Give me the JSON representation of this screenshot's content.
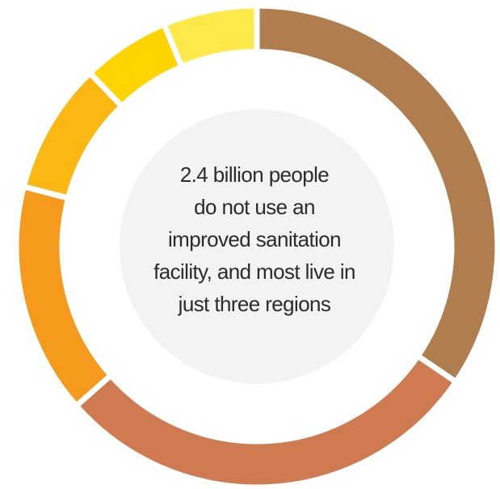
{
  "chart_data": {
    "type": "pie",
    "variant": "donut",
    "start_angle_deg": 0,
    "direction": "clockwise",
    "segments": [
      {
        "value": 34.5,
        "color": "#b07d4e"
      },
      {
        "value": 29.0,
        "color": "#d07a52"
      },
      {
        "value": 15.5,
        "color": "#f59a1c"
      },
      {
        "value": 8.8,
        "color": "#fbb813"
      },
      {
        "value": 5.9,
        "color": "#ffd400"
      },
      {
        "value": 6.3,
        "color": "#ffe94a"
      }
    ],
    "center_fill": "#f3f3f3",
    "separator_color": "#ffffff",
    "center_text": [
      "2.4 billion people",
      "do not use an",
      "improved sanitation",
      "facility, and most live in",
      "just three regions"
    ]
  }
}
